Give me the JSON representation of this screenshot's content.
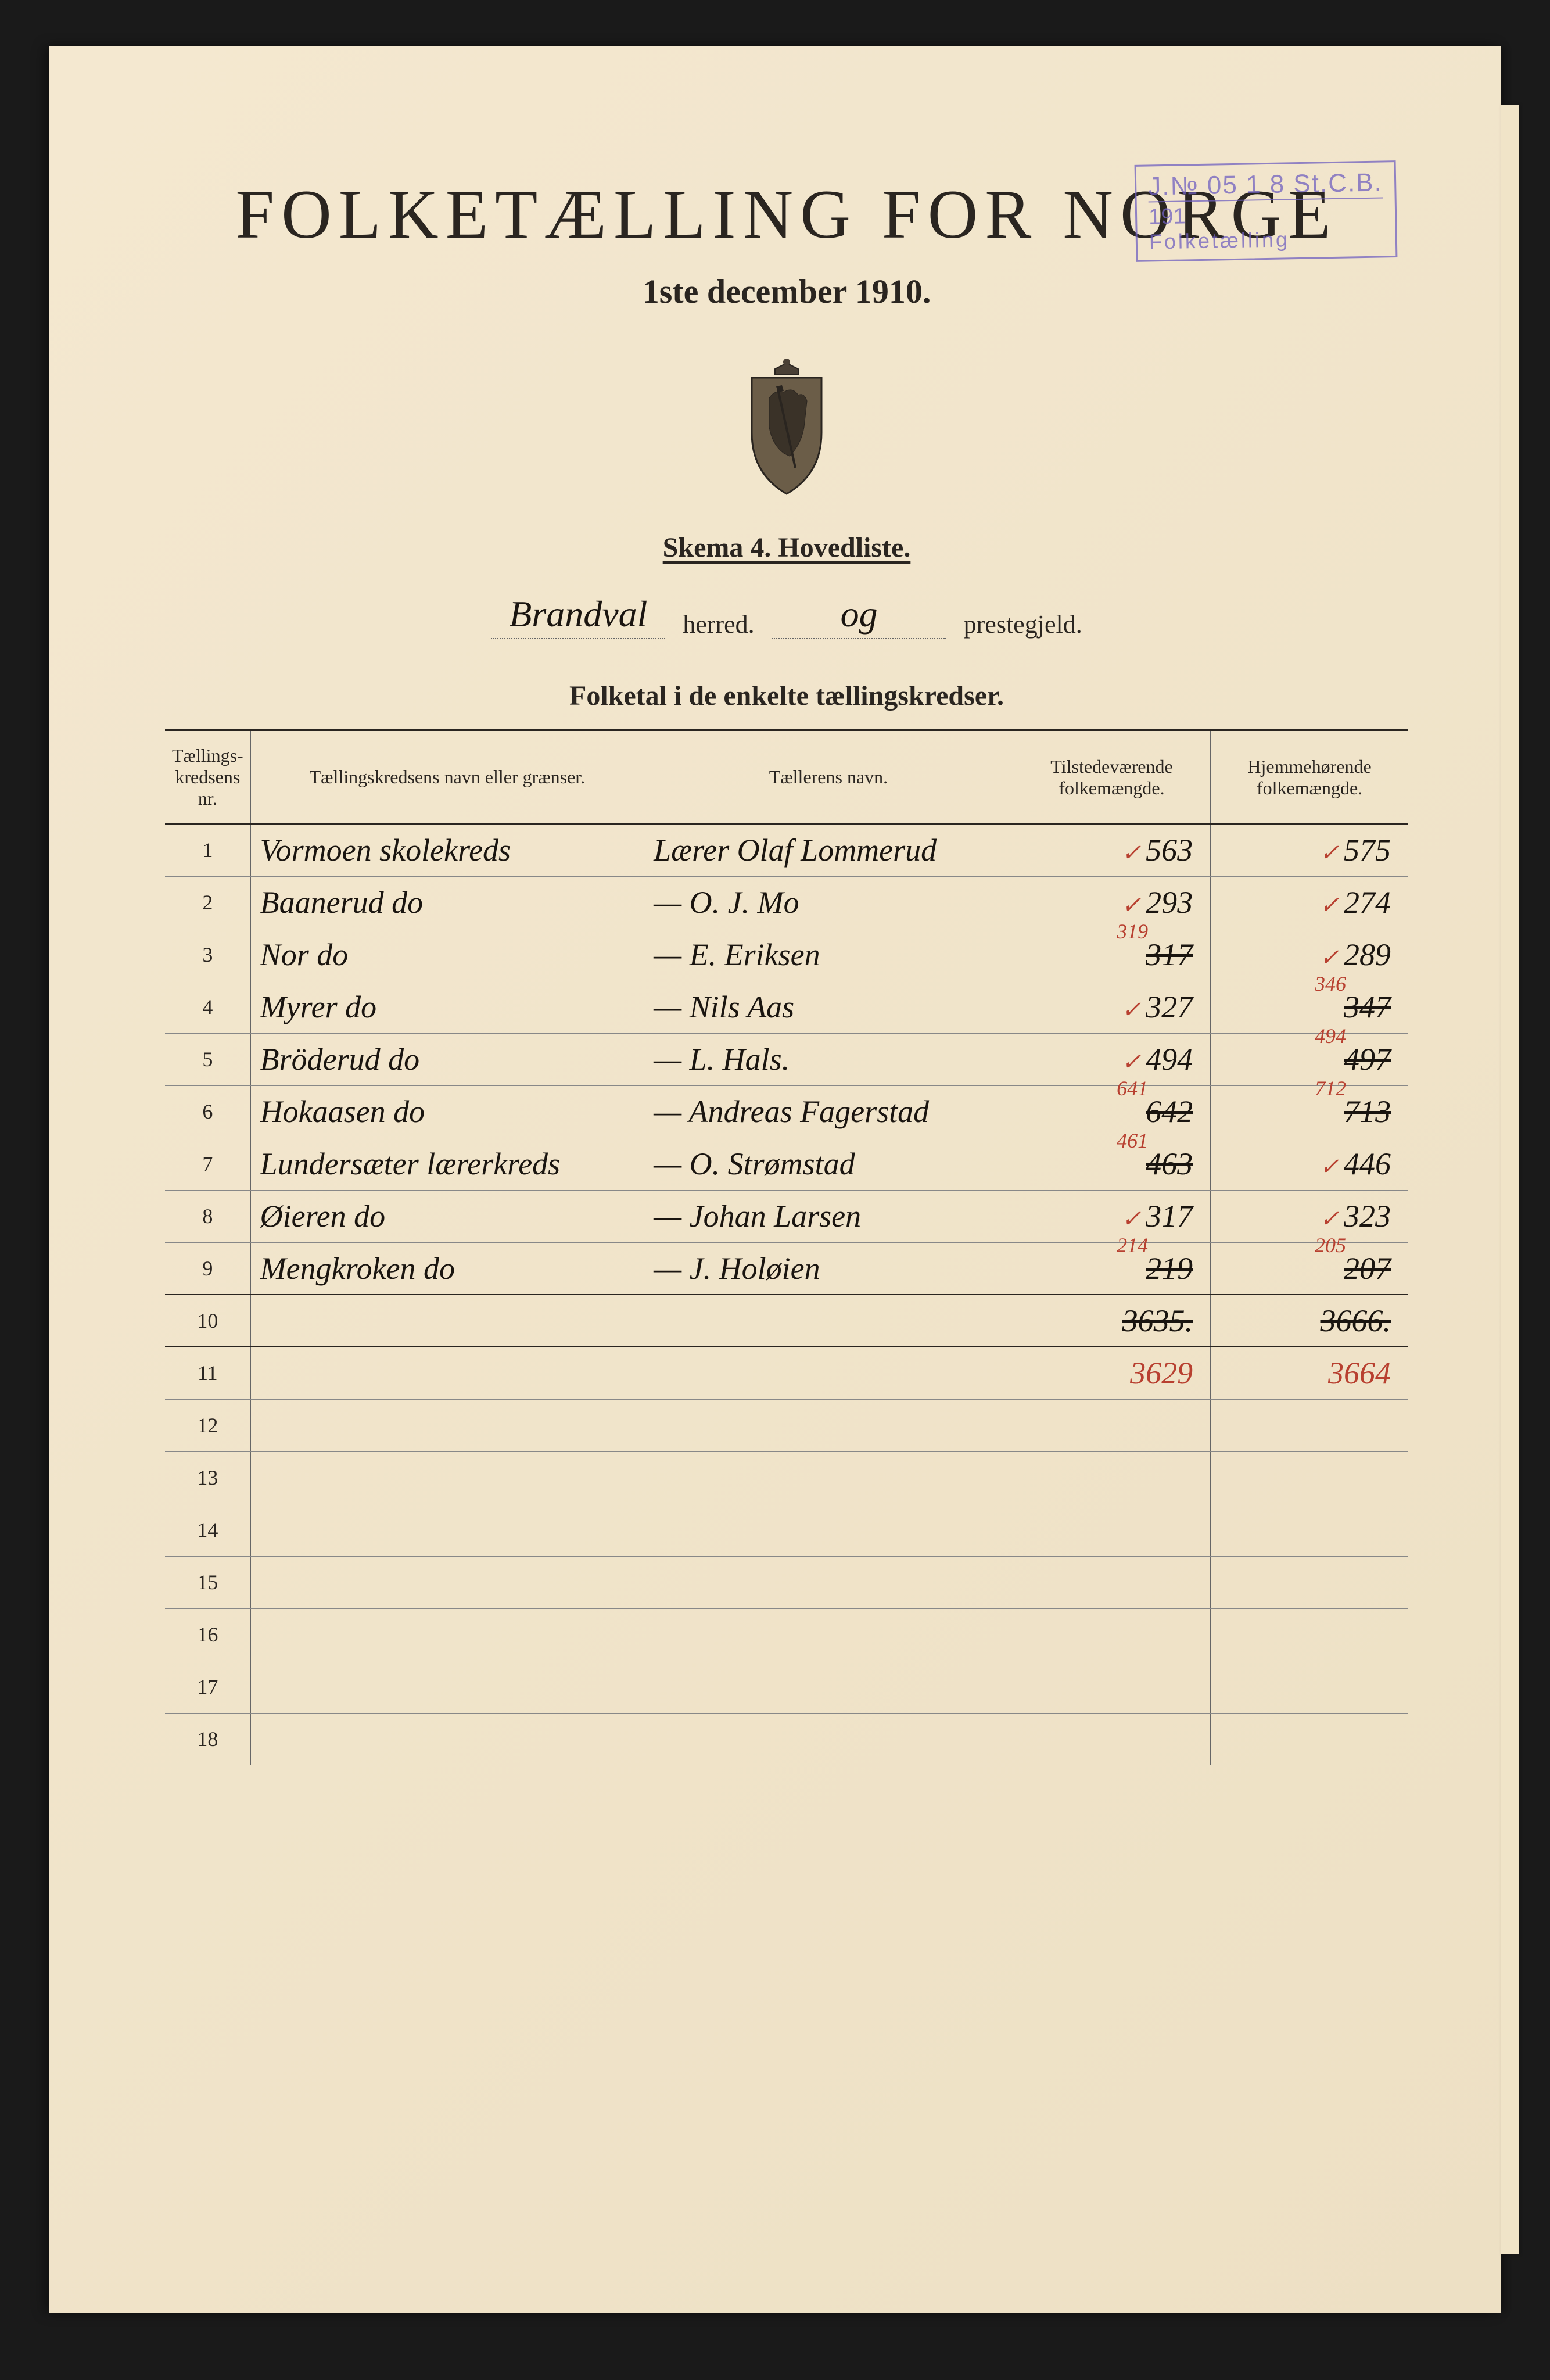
{
  "stamp": {
    "line1": "J.№ 05 1 8 St.C.B.",
    "line2": "191",
    "line3": "Folketælling"
  },
  "header": {
    "title": "FOLKETÆLLING FOR NORGE",
    "subtitle": "1ste december 1910.",
    "skema": "Skema 4.  Hovedliste."
  },
  "herred": {
    "name": "Brandval",
    "label_herred": "herred.",
    "og": "og",
    "prestegjeld_name": "",
    "label_prestegjeld": "prestegjeld."
  },
  "section_title": "Folketal i de enkelte tællingskredser.",
  "columns": {
    "nr": "Tællings-\nkredsens nr.",
    "name": "Tællingskredsens navn eller grænser.",
    "counter": "Tællerens navn.",
    "present": "Tilstedeværende\nfolkemængde.",
    "home": "Hjemmehørende\nfolkemængde."
  },
  "rows": [
    {
      "nr": "1",
      "name": "Vormoen skolekreds",
      "counter": "Lærer Olaf Lommerud",
      "present": "563",
      "present_tick": true,
      "home": "575",
      "home_tick": true
    },
    {
      "nr": "2",
      "name": "Baanerud    do",
      "counter": "—   O. J. Mo",
      "present": "293",
      "present_tick": true,
      "home": "274",
      "home_tick": true
    },
    {
      "nr": "3",
      "name": "Nor    do",
      "counter": "—   E. Eriksen",
      "present": "317",
      "present_struck": true,
      "present_corr": "319",
      "home": "289",
      "home_tick": true
    },
    {
      "nr": "4",
      "name": "Myrer    do",
      "counter": "—   Nils Aas",
      "present": "327",
      "present_tick": true,
      "home": "347",
      "home_struck": true,
      "home_corr": "346"
    },
    {
      "nr": "5",
      "name": "Bröderud    do",
      "counter": "—   L. Hals.",
      "present": "494",
      "present_tick": true,
      "home": "497",
      "home_struck": true,
      "home_corr": "494"
    },
    {
      "nr": "6",
      "name": "Hokaasen    do",
      "counter": "—   Andreas Fagerstad",
      "present": "642",
      "present_struck": true,
      "present_corr": "641",
      "home": "713",
      "home_struck": true,
      "home_corr": "712"
    },
    {
      "nr": "7",
      "name": "Lundersæter lærerkreds",
      "counter": "—   O. Strømstad",
      "present": "463",
      "present_struck": true,
      "present_corr": "461",
      "home": "446",
      "home_tick": true
    },
    {
      "nr": "8",
      "name": "Øieren    do",
      "counter": "—   Johan Larsen",
      "present": "317",
      "present_tick": true,
      "home": "323",
      "home_tick": true
    },
    {
      "nr": "9",
      "name": "Mengkroken    do",
      "counter": "—   J. Holøien",
      "present": "219",
      "present_struck": true,
      "present_corr": "214",
      "home": "207",
      "home_struck": true,
      "home_corr": "205"
    },
    {
      "nr": "10",
      "name": "",
      "counter": "",
      "present": "3635.",
      "present_struck": true,
      "home": "3666.",
      "home_struck": true,
      "is_total": true
    },
    {
      "nr": "11",
      "name": "",
      "counter": "",
      "present": "3629",
      "present_red": true,
      "home": "3664",
      "home_red": true
    },
    {
      "nr": "12",
      "name": "",
      "counter": "",
      "present": "",
      "home": ""
    },
    {
      "nr": "13",
      "name": "",
      "counter": "",
      "present": "",
      "home": ""
    },
    {
      "nr": "14",
      "name": "",
      "counter": "",
      "present": "",
      "home": ""
    },
    {
      "nr": "15",
      "name": "",
      "counter": "",
      "present": "",
      "home": ""
    },
    {
      "nr": "16",
      "name": "",
      "counter": "",
      "present": "",
      "home": ""
    },
    {
      "nr": "17",
      "name": "",
      "counter": "",
      "present": "",
      "home": ""
    },
    {
      "nr": "18",
      "name": "",
      "counter": "",
      "present": "",
      "home": ""
    }
  ],
  "colors": {
    "paper": "#f4e8d0",
    "ink": "#1a1510",
    "print": "#2a2520",
    "red_ink": "#b84030",
    "stamp": "#7060c0",
    "rule": "#666"
  }
}
